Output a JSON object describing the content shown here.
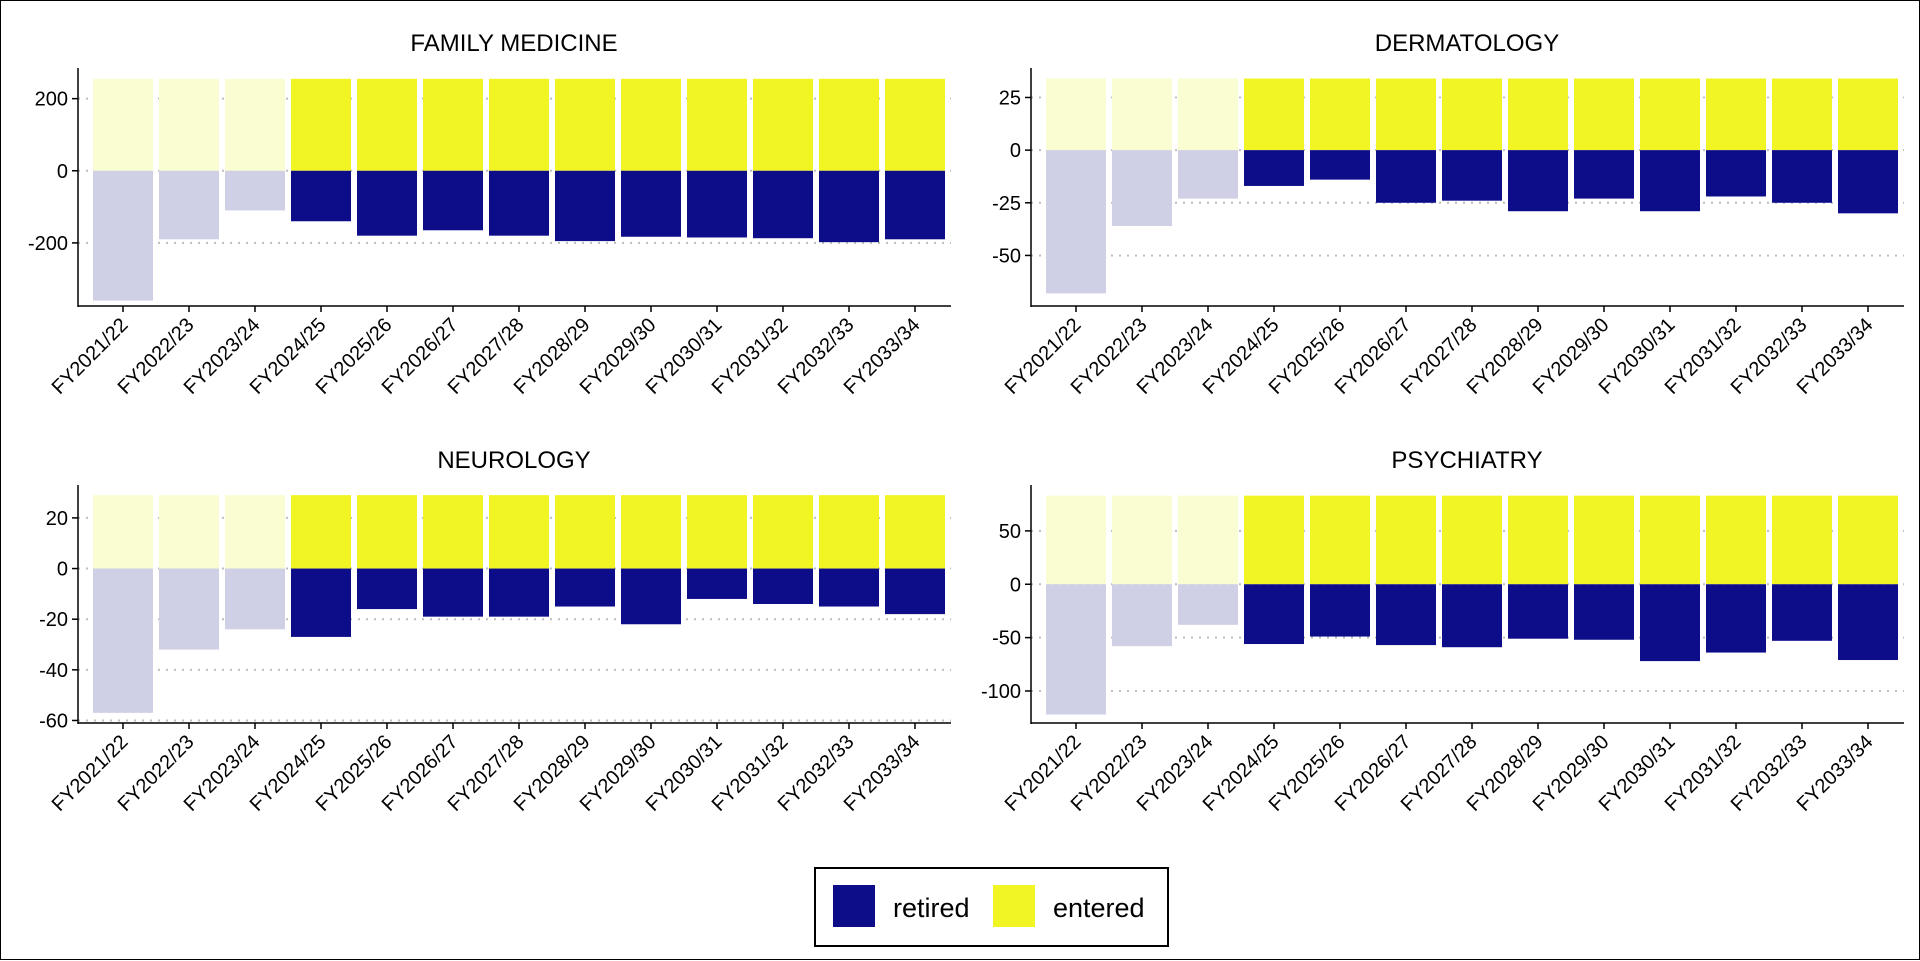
{
  "colors": {
    "retired": "#0d0d8a",
    "entered": "#f0f523",
    "retired_faded": "#cfcfe6",
    "entered_faded": "#fafdd2",
    "grid": "#bdbdbd"
  },
  "legend": {
    "position": "bottom",
    "items": [
      {
        "label": "retired",
        "color": "#0d0d8a"
      },
      {
        "label": "entered",
        "color": "#f0f523"
      }
    ]
  },
  "chart_data": [
    {
      "type": "bar",
      "title": "FAMILY MEDICINE",
      "categories": [
        "FY2021/22",
        "FY2022/23",
        "FY2023/24",
        "FY2024/25",
        "FY2025/26",
        "FY2026/27",
        "FY2027/28",
        "FY2028/29",
        "FY2029/30",
        "FY2030/31",
        "FY2031/32",
        "FY2032/33",
        "FY2033/34"
      ],
      "faded_count": 3,
      "ylim": [
        -375,
        285
      ],
      "yticks": [
        200,
        0,
        -200
      ],
      "ytick_labels": [
        "200",
        "0",
        "-200"
      ],
      "series": [
        {
          "name": "entered",
          "values": [
            255,
            255,
            255,
            255,
            255,
            255,
            255,
            255,
            255,
            255,
            255,
            255,
            255
          ]
        },
        {
          "name": "retired",
          "values": [
            -360,
            -190,
            -110,
            -140,
            -180,
            -165,
            -180,
            -195,
            -183,
            -185,
            -187,
            -198,
            -190
          ]
        }
      ]
    },
    {
      "type": "bar",
      "title": "DERMATOLOGY",
      "categories": [
        "FY2021/22",
        "FY2022/23",
        "FY2023/24",
        "FY2024/25",
        "FY2025/26",
        "FY2026/27",
        "FY2027/28",
        "FY2028/29",
        "FY2029/30",
        "FY2030/31",
        "FY2031/32",
        "FY2032/33",
        "FY2033/34"
      ],
      "faded_count": 3,
      "ylim": [
        -74,
        39
      ],
      "yticks": [
        25,
        0,
        -25,
        -50
      ],
      "ytick_labels": [
        "25",
        "0",
        "-25",
        "-50"
      ],
      "series": [
        {
          "name": "entered",
          "values": [
            34,
            34,
            34,
            34,
            34,
            34,
            34,
            34,
            34,
            34,
            34,
            34,
            34
          ]
        },
        {
          "name": "retired",
          "values": [
            -68,
            -36,
            -23,
            -17,
            -14,
            -25,
            -24,
            -29,
            -23,
            -29,
            -22,
            -25,
            -30
          ]
        }
      ]
    },
    {
      "type": "bar",
      "title": "NEUROLOGY",
      "categories": [
        "FY2021/22",
        "FY2022/23",
        "FY2023/24",
        "FY2024/25",
        "FY2025/26",
        "FY2026/27",
        "FY2027/28",
        "FY2028/29",
        "FY2029/30",
        "FY2030/31",
        "FY2031/32",
        "FY2032/33",
        "FY2033/34"
      ],
      "faded_count": 3,
      "ylim": [
        -61,
        33
      ],
      "yticks": [
        20,
        0,
        -20,
        -40,
        -60
      ],
      "ytick_labels": [
        "20",
        "0",
        "-20",
        "-40",
        "-60"
      ],
      "series": [
        {
          "name": "entered",
          "values": [
            29,
            29,
            29,
            29,
            29,
            29,
            29,
            29,
            29,
            29,
            29,
            29,
            29
          ]
        },
        {
          "name": "retired",
          "values": [
            -57,
            -32,
            -24,
            -27,
            -16,
            -19,
            -19,
            -15,
            -22,
            -12,
            -14,
            -15,
            -18
          ]
        }
      ]
    },
    {
      "type": "bar",
      "title": "PSYCHIATRY",
      "categories": [
        "FY2021/22",
        "FY2022/23",
        "FY2023/24",
        "FY2024/25",
        "FY2025/26",
        "FY2026/27",
        "FY2027/28",
        "FY2028/29",
        "FY2029/30",
        "FY2030/31",
        "FY2031/32",
        "FY2032/33",
        "FY2033/34"
      ],
      "faded_count": 3,
      "ylim": [
        -130,
        93
      ],
      "yticks": [
        50,
        0,
        -50,
        -100
      ],
      "ytick_labels": [
        "50",
        "0",
        "-50",
        "-100"
      ],
      "series": [
        {
          "name": "entered",
          "values": [
            83,
            83,
            83,
            83,
            83,
            83,
            83,
            83,
            83,
            83,
            83,
            83,
            83
          ]
        },
        {
          "name": "retired",
          "values": [
            -122,
            -58,
            -38,
            -56,
            -49,
            -57,
            -59,
            -51,
            -52,
            -72,
            -64,
            -53,
            -71
          ]
        }
      ]
    }
  ]
}
